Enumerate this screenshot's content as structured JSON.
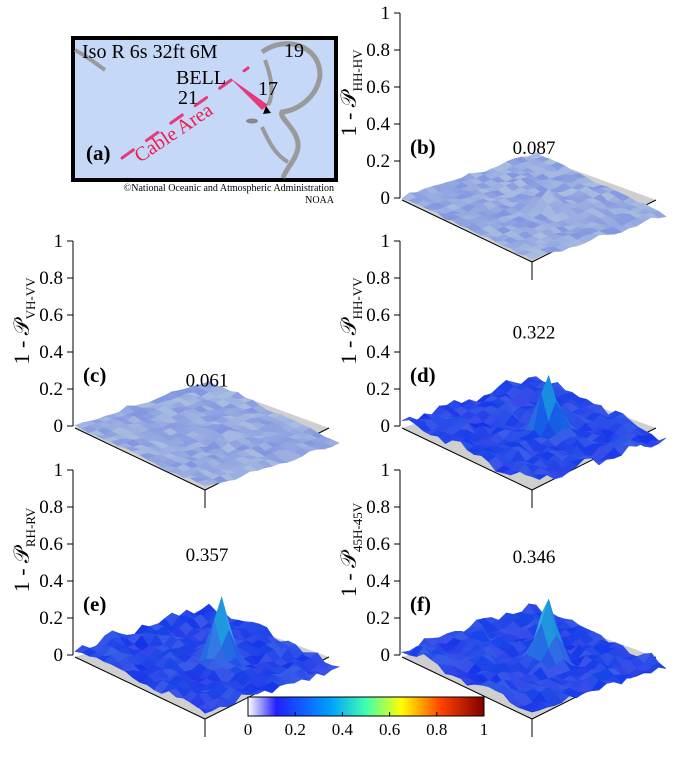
{
  "figure": {
    "map": {
      "label": "(a)",
      "title": "Iso R 6s 32ft 6M",
      "bell": "BELL",
      "depths": [
        "19",
        "17",
        "21"
      ],
      "cable": "Cable Area",
      "credit1": "©National Oceanic and Atmospheric Administration",
      "credit2": "NOAA",
      "colors": {
        "water": "#c5d8f8",
        "border": "#000000",
        "contour": "#9a9a9a",
        "magenta": "#e6397a"
      }
    },
    "colorbar": {
      "ticks": [
        "0",
        "0.2",
        "0.4",
        "0.6",
        "0.8",
        "1"
      ],
      "colormap": "jet",
      "colors": [
        "#ffffff",
        "#0000ff",
        "#00bfff",
        "#ffff00",
        "#ff0000",
        "#8b0000"
      ]
    }
  },
  "chart_data": [
    {
      "type": "surface",
      "label": "(b)",
      "ylabel_main": "1 - 𝒫",
      "ylabel_sub": "HH-HV",
      "zlim": [
        0,
        1
      ],
      "zticks": [
        "0",
        "0.2",
        "0.4",
        "0.6",
        "0.8",
        "1"
      ],
      "peak": 0.087,
      "peak_label": "0.087"
    },
    {
      "type": "surface",
      "label": "(c)",
      "ylabel_main": "1 - 𝒫",
      "ylabel_sub": "VH-VV",
      "zlim": [
        0,
        1
      ],
      "zticks": [
        "0",
        "0.2",
        "0.4",
        "0.6",
        "0.8",
        "1"
      ],
      "peak": 0.061,
      "peak_label": "0.061"
    },
    {
      "type": "surface",
      "label": "(d)",
      "ylabel_main": "1 - 𝒫",
      "ylabel_sub": "HH-VV",
      "zlim": [
        0,
        1
      ],
      "zticks": [
        "0",
        "0.2",
        "0.4",
        "0.6",
        "0.8",
        "1"
      ],
      "peak": 0.322,
      "peak_label": "0.322"
    },
    {
      "type": "surface",
      "label": "(e)",
      "ylabel_main": "1 - 𝒫",
      "ylabel_sub": "RH-RV",
      "zlim": [
        0,
        1
      ],
      "zticks": [
        "0",
        "0.2",
        "0.4",
        "0.6",
        "0.8",
        "1"
      ],
      "peak": 0.357,
      "peak_label": "0.357"
    },
    {
      "type": "surface",
      "label": "(f)",
      "ylabel_main": "1 - 𝒫",
      "ylabel_sub": "45H-45V",
      "zlim": [
        0,
        1
      ],
      "zticks": [
        "0",
        "0.2",
        "0.4",
        "0.6",
        "0.8",
        "1"
      ],
      "peak": 0.346,
      "peak_label": "0.346"
    }
  ]
}
